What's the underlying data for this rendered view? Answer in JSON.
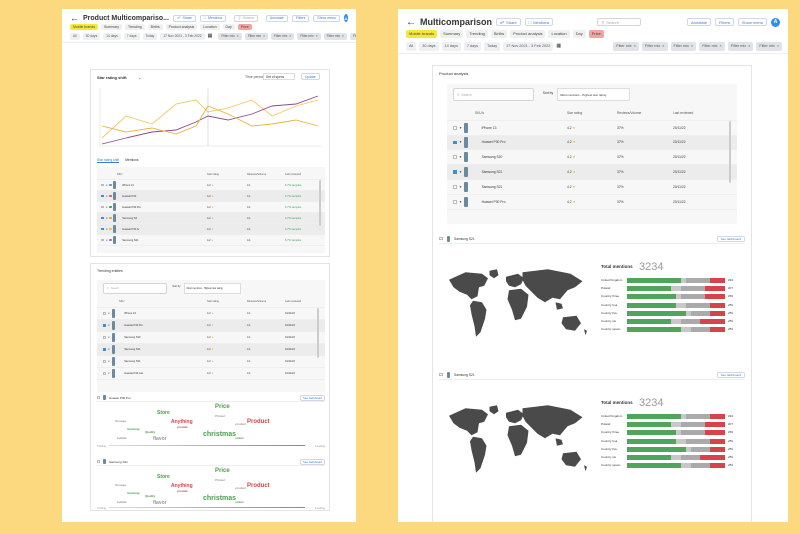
{
  "left": {
    "title": "Product Multicompariso...",
    "share": "Share",
    "mentions": "Mentions",
    "search_placeholder": "Search",
    "btn_a": "Annotate",
    "btn_b": "Filters",
    "btn_c": "Show menu",
    "avatar": "A",
    "tabs": [
      "Mobile brands",
      "Summary",
      "Trending",
      "Births",
      "Product analysis",
      "Location",
      "Day",
      "Price"
    ],
    "tab_on": "Mobile brands",
    "filters": [
      "All",
      "30 days",
      "14 days",
      "7 days",
      "Today",
      "17 Nov 2021 - 3 Feb 2022"
    ],
    "filter_chips": [
      "Filter mix",
      "Filter mix",
      "Filter mix",
      "Filter mix",
      "Filter mix",
      "Filter mix"
    ],
    "star_chart": {
      "title": "Star rating shift",
      "period_label": "Time period",
      "period_value": "Set of specs",
      "apply": "Update"
    },
    "chart_tabs": [
      "Star rating shift",
      "Mentions"
    ],
    "table_headers": [
      "SKU",
      "Star rating",
      "Reviews/Volume",
      "Last reviewed"
    ],
    "rows": [
      {
        "name": "iPhone 13",
        "rating": "4.2",
        "reviews": "4.1",
        "last": "6.7% samples"
      },
      {
        "name": "Huawei P30",
        "rating": "4.2",
        "reviews": "4.1",
        "last": "6.7% samples"
      },
      {
        "name": "Huawei P30 Pro",
        "rating": "4.2",
        "reviews": "4.1",
        "last": "6.7% samples"
      },
      {
        "name": "Samsung S2",
        "rating": "4.2",
        "reviews": "4.1",
        "last": "6.7% samples"
      },
      {
        "name": "Huawei P30 Ar",
        "rating": "4.2",
        "reviews": "4.1",
        "last": "6.7% samples"
      },
      {
        "name": "Samsung S21",
        "rating": "4.2",
        "reviews": "4.1",
        "last": "6.7% samples"
      }
    ],
    "trending": "Trending entities",
    "search2": "Search",
    "sort_label": "Sort by",
    "sort_value": "Most mentions - Highest star rating",
    "rows2": [
      {
        "name": "iPhone 13",
        "rating": "4.2",
        "reviews": "4.1",
        "last": "01/11/22"
      },
      {
        "name": "Huawei P30 Pro",
        "rating": "4.2",
        "reviews": "4.1",
        "last": "01/11/22"
      },
      {
        "name": "Samsung S20",
        "rating": "4.2",
        "reviews": "4.1",
        "last": "01/11/22"
      },
      {
        "name": "Samsung S21",
        "rating": "4.2",
        "reviews": "4.1",
        "last": "01/11/22"
      },
      {
        "name": "Samsung S21",
        "rating": "4.2",
        "reviews": "4.1",
        "last": "01/11/22"
      },
      {
        "name": "Huawei P30 Lite",
        "rating": "4.2",
        "reviews": "4.1",
        "last": "01/11/22"
      }
    ],
    "cloud1_name": "Huawei P30 Pro",
    "cloud2_name": "Samsung S21",
    "dashboard": "See dashboard",
    "words": [
      "Price",
      "Store",
      "Anything",
      "Product",
      "christmas",
      "flavor",
      "Pinned",
      "Storage",
      "provide",
      "Amazing",
      "Quality",
      "product",
      "online",
      "bubble"
    ],
    "slider_left": "Trailing",
    "slider_right": "Leading"
  },
  "right": {
    "title": "Multicomparison",
    "share": "Share",
    "mentions": "Mentions",
    "search_placeholder": "Search",
    "btn_a": "Annotate",
    "btn_b": "Filters",
    "btn_c": "Show menu",
    "avatar": "A",
    "tabs": [
      "Mobile brands",
      "Summary",
      "Trending",
      "Births",
      "Product analysis",
      "Location",
      "Day",
      "Price"
    ],
    "tab_on": "Mobile brands",
    "filters": [
      "All",
      "30 days",
      "14 days",
      "7 days",
      "Today",
      "17 Nov 2021 - 3 Feb 2022"
    ],
    "filter_chips": [
      "Filter mix",
      "Filter mix",
      "Filter mix",
      "Filter mix",
      "Filter mix",
      "Filter mix"
    ],
    "section": "Product analysis",
    "search2": "Search",
    "sort_label": "Sort by",
    "sort_value": "Most mentions - Highest star rating",
    "table_headers": [
      "SKU's",
      "Star rating",
      "Reviews/Volume",
      "Last reviewed"
    ],
    "rows": [
      {
        "name": "iPhone 13",
        "rating": "4.2",
        "reviews": "37%",
        "last": "20/11/22"
      },
      {
        "name": "Huawei P30 Pro",
        "rating": "4.2",
        "reviews": "37%",
        "last": "20/11/22"
      },
      {
        "name": "Samsung S20",
        "rating": "4.2",
        "reviews": "37%",
        "last": "20/11/22"
      },
      {
        "name": "Samsung S21",
        "rating": "4.2",
        "reviews": "37%",
        "last": "20/11/22"
      },
      {
        "name": "Samsung S21",
        "rating": "4.2",
        "reviews": "37%",
        "last": "20/11/22"
      },
      {
        "name": "Huawei P30 Pro",
        "rating": "4.2",
        "reviews": "37%",
        "last": "20/11/22"
      }
    ],
    "map1_sku": "Samsung S21",
    "map2_sku": "Samsung S21",
    "dashboard": "See dashboard",
    "total_label": "Total mentions",
    "total_value": "3234",
    "countries": [
      "United Kingdom",
      "Poland",
      "Country three",
      "Country four",
      "Country five",
      "Country six",
      "Country seven"
    ],
    "country_values": [
      "294",
      "207",
      "256",
      "256",
      "256",
      "256",
      "256"
    ]
  }
}
